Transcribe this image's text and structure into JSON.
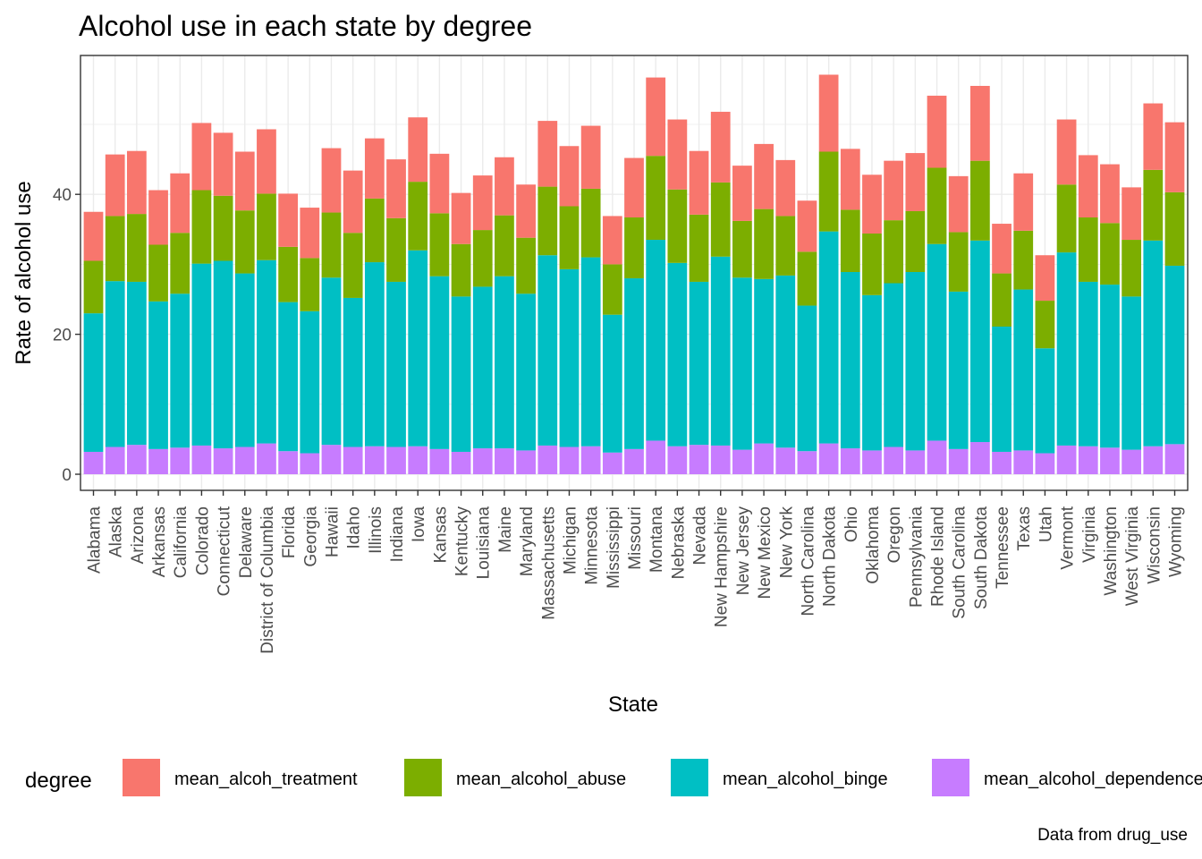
{
  "chart_data": {
    "type": "bar",
    "stacked": true,
    "title": "Alcohol use in each state by degree",
    "xlabel": "State",
    "ylabel": "Rate of alcohol use",
    "caption": "Data from drug_use",
    "ylim": [
      0,
      60
    ],
    "yticks": [
      0,
      20,
      40
    ],
    "grid": true,
    "legend": {
      "title": "degree",
      "position": "bottom"
    },
    "categories": [
      "Alabama",
      "Alaska",
      "Arizona",
      "Arkansas",
      "California",
      "Colorado",
      "Connecticut",
      "Delaware",
      "District of Columbia",
      "Florida",
      "Georgia",
      "Hawaii",
      "Idaho",
      "Illinois",
      "Indiana",
      "Iowa",
      "Kansas",
      "Kentucky",
      "Louisiana",
      "Maine",
      "Maryland",
      "Massachusetts",
      "Michigan",
      "Minnesota",
      "Mississippi",
      "Missouri",
      "Montana",
      "Nebraska",
      "Nevada",
      "New Hampshire",
      "New Jersey",
      "New Mexico",
      "New York",
      "North Carolina",
      "North Dakota",
      "Ohio",
      "Oklahoma",
      "Oregon",
      "Pennsylvania",
      "Rhode Island",
      "South Carolina",
      "South Dakota",
      "Tennessee",
      "Texas",
      "Utah",
      "Vermont",
      "Virginia",
      "Washington",
      "West Virginia",
      "Wisconsin",
      "Wyoming"
    ],
    "series": [
      {
        "name": "mean_alcoh_treatment",
        "color": "#F8766D",
        "values": [
          7.0,
          8.8,
          9.0,
          7.8,
          8.5,
          9.6,
          9.0,
          8.4,
          9.2,
          7.6,
          7.2,
          9.2,
          8.9,
          8.6,
          8.4,
          9.2,
          8.5,
          7.3,
          7.8,
          8.3,
          7.6,
          9.4,
          8.6,
          9.0,
          6.9,
          8.5,
          11.2,
          10.0,
          9.1,
          10.1,
          7.9,
          9.3,
          8.0,
          7.3,
          11.0,
          8.7,
          8.4,
          8.5,
          8.3,
          10.3,
          8.0,
          10.7,
          7.1,
          8.2,
          6.5,
          9.3,
          8.9,
          8.4,
          7.5,
          9.5,
          10.0
        ]
      },
      {
        "name": "mean_alcohol_abuse",
        "color": "#7CAE00",
        "values": [
          7.5,
          9.3,
          9.7,
          8.1,
          8.7,
          10.5,
          9.3,
          9.0,
          9.5,
          7.9,
          7.6,
          9.3,
          9.3,
          9.1,
          9.1,
          9.8,
          9.0,
          7.5,
          8.1,
          8.7,
          8.0,
          9.8,
          9.0,
          9.8,
          7.2,
          8.7,
          12.0,
          10.5,
          9.6,
          10.6,
          8.1,
          10.0,
          8.5,
          7.7,
          11.4,
          8.9,
          8.8,
          9.0,
          8.7,
          10.9,
          8.5,
          11.4,
          7.6,
          8.4,
          6.8,
          9.7,
          9.2,
          8.8,
          8.1,
          10.1,
          10.5
        ]
      },
      {
        "name": "mean_alcohol_binge",
        "color": "#00BFC4",
        "values": [
          19.8,
          23.7,
          23.3,
          21.1,
          22.0,
          26.0,
          26.8,
          24.8,
          26.2,
          21.3,
          20.3,
          23.9,
          21.3,
          26.3,
          23.6,
          28.0,
          24.7,
          22.2,
          23.1,
          24.6,
          22.4,
          27.2,
          25.4,
          27.0,
          19.7,
          24.4,
          28.7,
          26.2,
          23.3,
          27.0,
          24.6,
          23.5,
          24.6,
          20.8,
          30.3,
          25.2,
          22.2,
          23.4,
          25.5,
          28.1,
          22.5,
          28.8,
          17.9,
          23.0,
          15.0,
          27.6,
          23.5,
          23.3,
          21.9,
          29.4,
          25.5
        ]
      },
      {
        "name": "mean_alcohol_dependence",
        "color": "#C77CFF",
        "values": [
          3.2,
          3.9,
          4.2,
          3.6,
          3.8,
          4.1,
          3.7,
          3.9,
          4.4,
          3.3,
          3.0,
          4.2,
          3.9,
          4.0,
          3.9,
          4.0,
          3.6,
          3.2,
          3.7,
          3.7,
          3.4,
          4.1,
          3.9,
          4.0,
          3.1,
          3.6,
          4.8,
          4.0,
          4.2,
          4.1,
          3.5,
          4.4,
          3.8,
          3.3,
          4.4,
          3.7,
          3.4,
          3.9,
          3.4,
          4.8,
          3.6,
          4.6,
          3.2,
          3.4,
          3.0,
          4.1,
          4.0,
          3.8,
          3.5,
          4.0,
          4.3
        ]
      }
    ]
  }
}
